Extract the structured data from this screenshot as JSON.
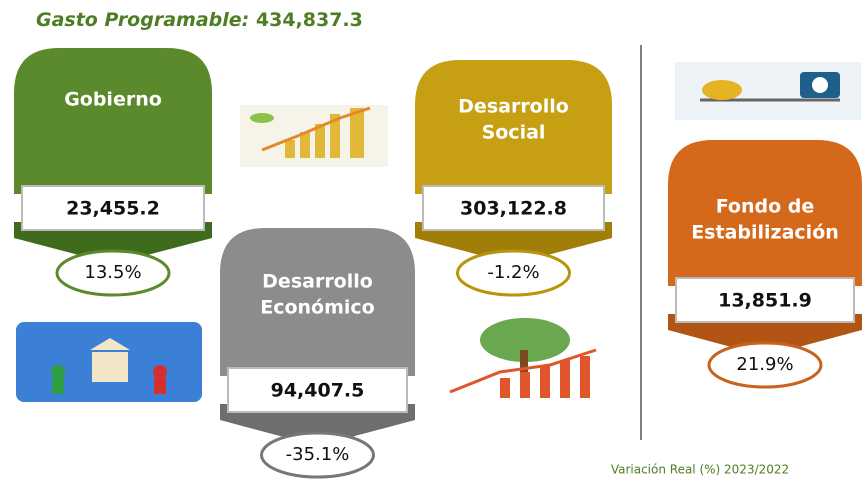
{
  "header": {
    "label": "Gasto Programable",
    "value": "434,837.3"
  },
  "cards": [
    {
      "name": [
        "Gobierno"
      ],
      "amount": "23,455.2",
      "variation": "13.5%"
    },
    {
      "name": [
        "Desarrollo",
        "Social"
      ],
      "amount": "303,122.8",
      "variation": "-1.2%"
    },
    {
      "name": [
        "Desarrollo",
        "Económico"
      ],
      "amount": "94,407.5",
      "variation": "-35.1%"
    },
    {
      "name": [
        "Fondo de",
        "Estabilización"
      ],
      "amount": "13,851.9",
      "variation": "21.9%"
    }
  ],
  "footer": "Variación Real (%) 2023/2022"
}
